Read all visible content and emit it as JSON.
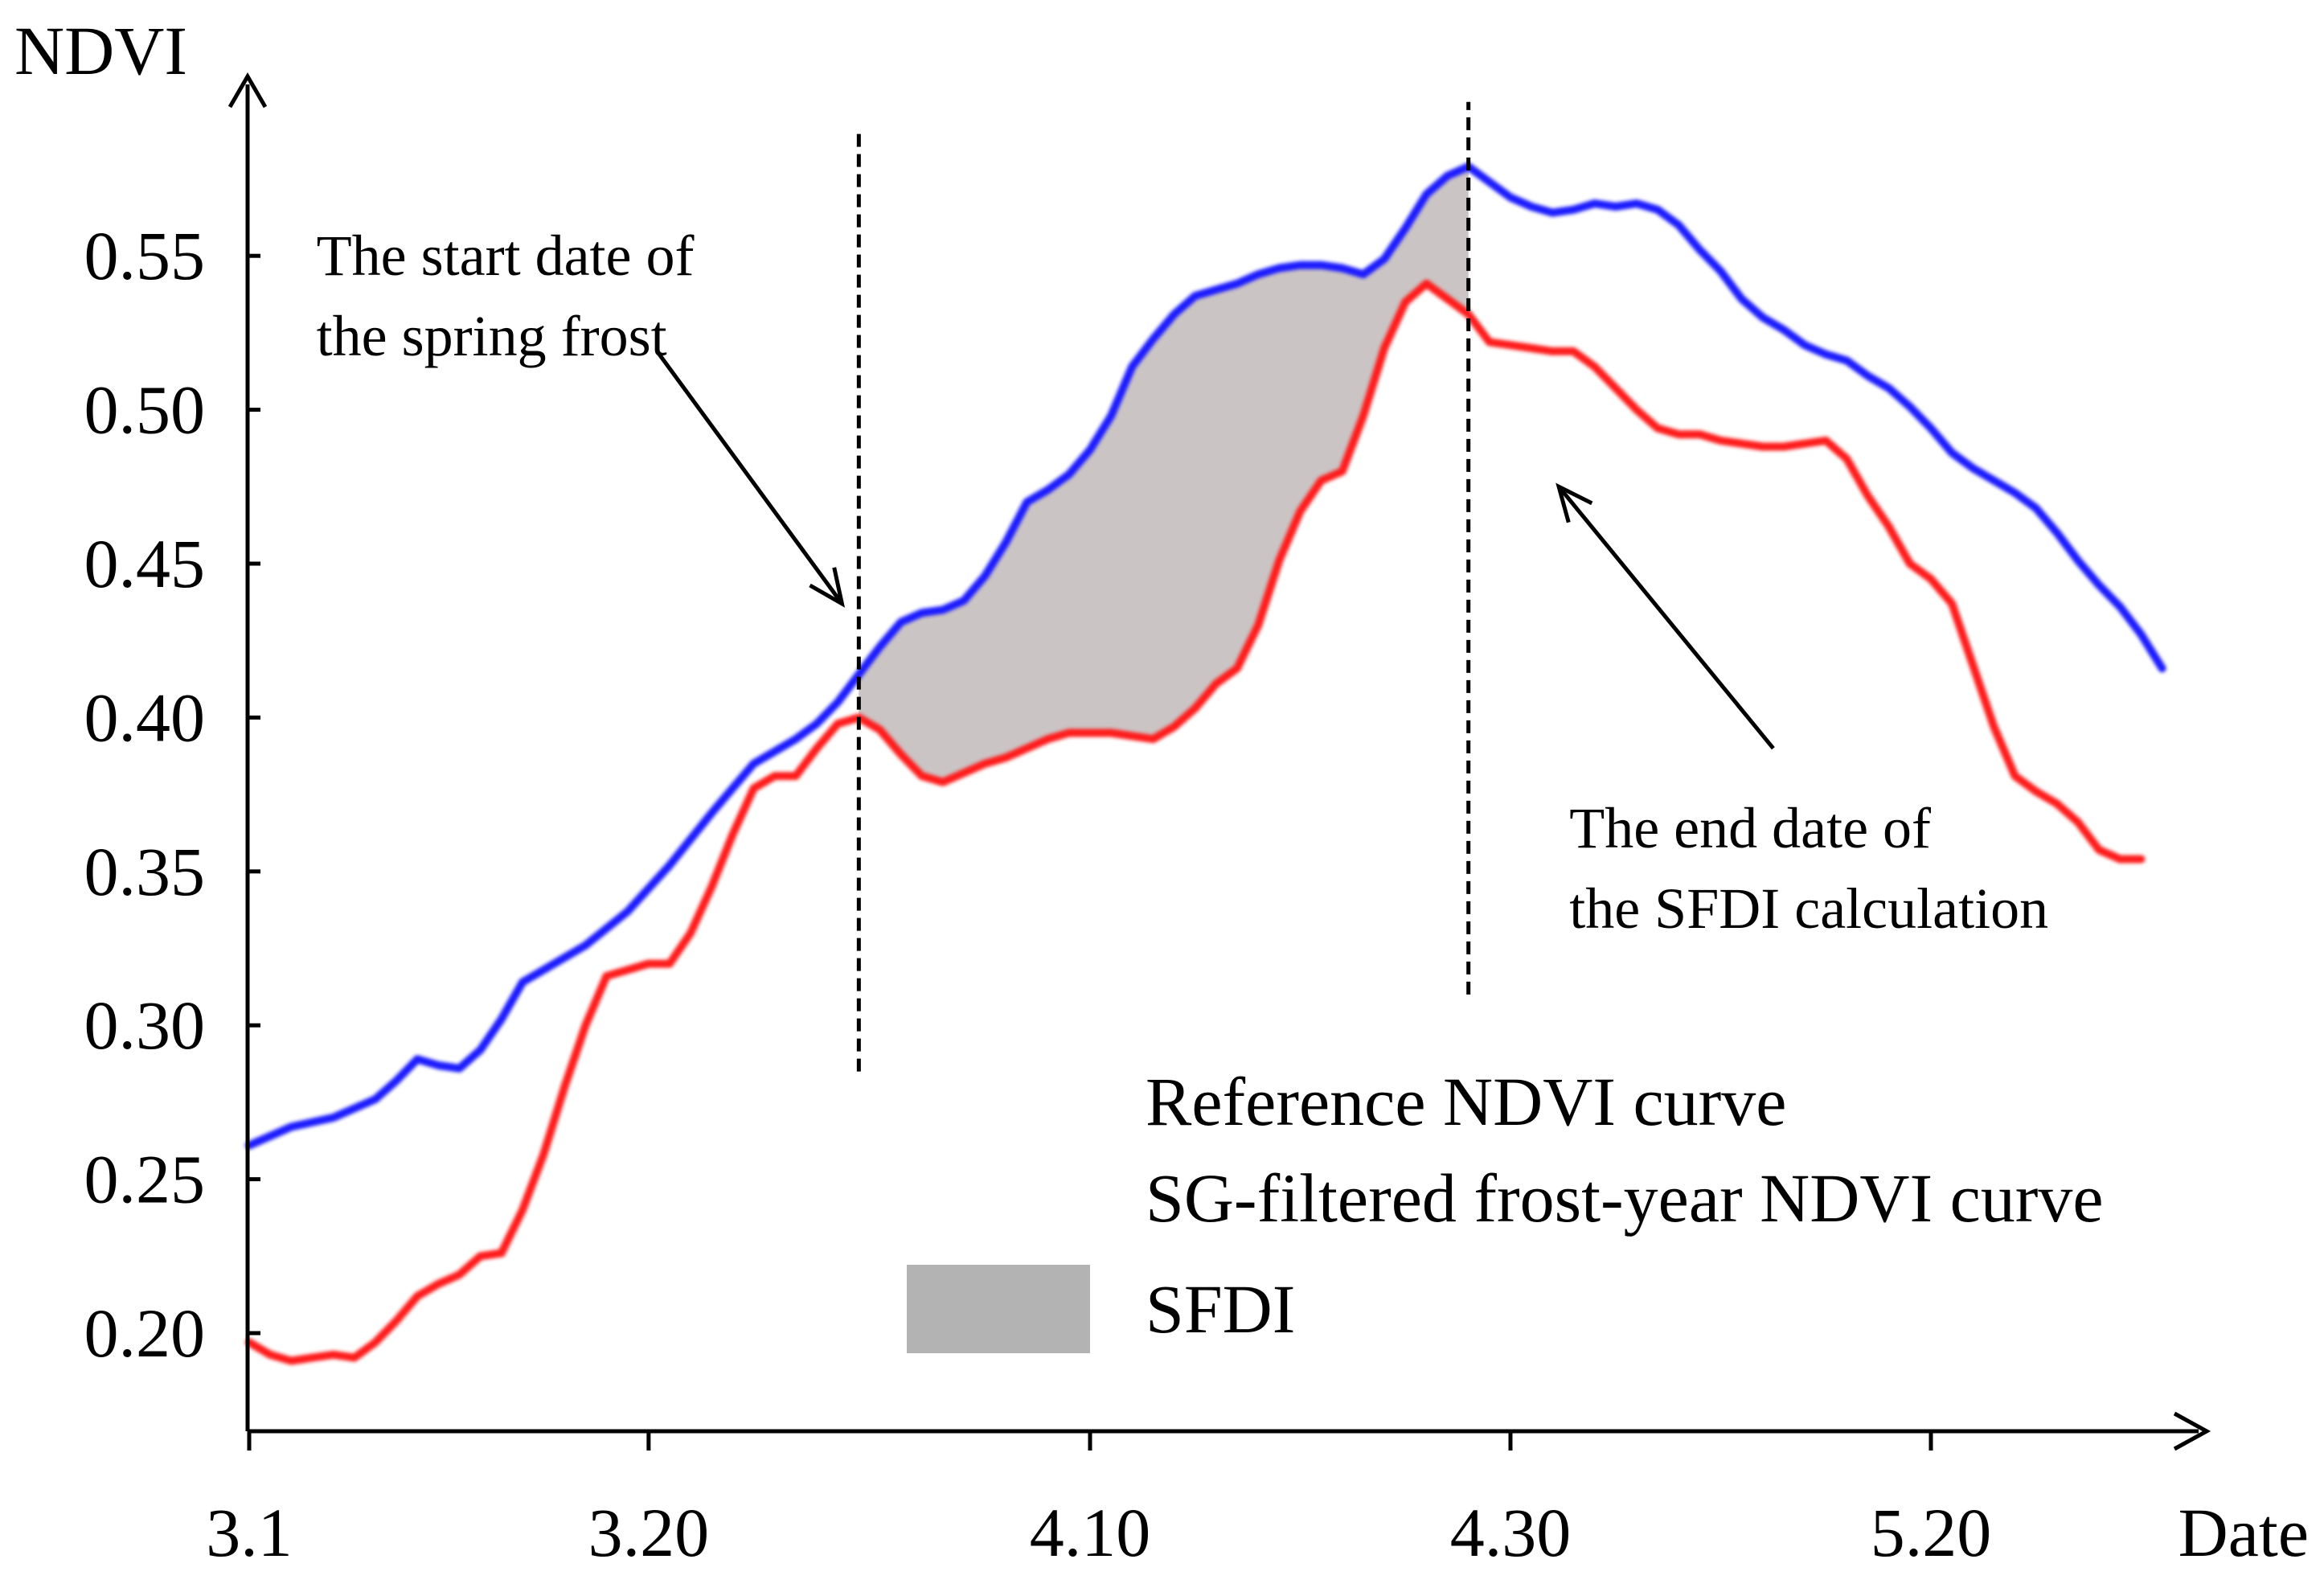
{
  "chart_data": {
    "type": "line",
    "title": "",
    "xlabel": "Date",
    "ylabel": "NDVI",
    "x_axis": {
      "domain_days": [
        0,
        92
      ],
      "ticks": [
        {
          "day": 0,
          "label": "3.1"
        },
        {
          "day": 19,
          "label": "3.20"
        },
        {
          "day": 40,
          "label": "4.10"
        },
        {
          "day": 60,
          "label": "4.30"
        },
        {
          "day": 80,
          "label": "5.20"
        }
      ]
    },
    "ylim": [
      0.17,
      0.59
    ],
    "yticks": [
      "0.20",
      "0.25",
      "0.30",
      "0.35",
      "0.40",
      "0.45",
      "0.50",
      "0.55"
    ],
    "grid": false,
    "series": [
      {
        "name": "Reference NDVI curve",
        "color": "#1a1aff",
        "points": [
          [
            0,
            0.261
          ],
          [
            2,
            0.267
          ],
          [
            4,
            0.27
          ],
          [
            6,
            0.276
          ],
          [
            7,
            0.282
          ],
          [
            8,
            0.289
          ],
          [
            9,
            0.287
          ],
          [
            10,
            0.286
          ],
          [
            11,
            0.292
          ],
          [
            12,
            0.302
          ],
          [
            13,
            0.314
          ],
          [
            14,
            0.318
          ],
          [
            16,
            0.326
          ],
          [
            18,
            0.337
          ],
          [
            20,
            0.352
          ],
          [
            22,
            0.369
          ],
          [
            23,
            0.377
          ],
          [
            24,
            0.385
          ],
          [
            25,
            0.389
          ],
          [
            26,
            0.393
          ],
          [
            27,
            0.398
          ],
          [
            28,
            0.405
          ],
          [
            29,
            0.414
          ],
          [
            30,
            0.423
          ],
          [
            31,
            0.431
          ],
          [
            32,
            0.434
          ],
          [
            33,
            0.435
          ],
          [
            34,
            0.438
          ],
          [
            35,
            0.446
          ],
          [
            36,
            0.457
          ],
          [
            37,
            0.47
          ],
          [
            38,
            0.474
          ],
          [
            39,
            0.479
          ],
          [
            40,
            0.487
          ],
          [
            41,
            0.498
          ],
          [
            42,
            0.514
          ],
          [
            43,
            0.523
          ],
          [
            44,
            0.531
          ],
          [
            45,
            0.537
          ],
          [
            46,
            0.539
          ],
          [
            47,
            0.541
          ],
          [
            48,
            0.544
          ],
          [
            49,
            0.546
          ],
          [
            50,
            0.547
          ],
          [
            51,
            0.547
          ],
          [
            52,
            0.546
          ],
          [
            53,
            0.544
          ],
          [
            54,
            0.549
          ],
          [
            55,
            0.559
          ],
          [
            56,
            0.57
          ],
          [
            57,
            0.576
          ],
          [
            58,
            0.579
          ],
          [
            59,
            0.574
          ],
          [
            60,
            0.569
          ],
          [
            61,
            0.566
          ],
          [
            62,
            0.564
          ],
          [
            63,
            0.565
          ],
          [
            64,
            0.567
          ],
          [
            65,
            0.566
          ],
          [
            66,
            0.567
          ],
          [
            67,
            0.565
          ],
          [
            68,
            0.56
          ],
          [
            69,
            0.552
          ],
          [
            70,
            0.545
          ],
          [
            71,
            0.536
          ],
          [
            72,
            0.53
          ],
          [
            73,
            0.526
          ],
          [
            74,
            0.521
          ],
          [
            75,
            0.518
          ],
          [
            76,
            0.516
          ],
          [
            77,
            0.511
          ],
          [
            78,
            0.507
          ],
          [
            79,
            0.501
          ],
          [
            80,
            0.494
          ],
          [
            81,
            0.486
          ],
          [
            82,
            0.481
          ],
          [
            83,
            0.477
          ],
          [
            84,
            0.473
          ],
          [
            85,
            0.468
          ],
          [
            86,
            0.46
          ],
          [
            87,
            0.451
          ],
          [
            88,
            0.443
          ],
          [
            89,
            0.436
          ],
          [
            90,
            0.427
          ],
          [
            91,
            0.416
          ]
        ]
      },
      {
        "name": "SG-filtered frost-year NDVI curve",
        "color": "#ff1a1a",
        "points": [
          [
            0,
            0.197
          ],
          [
            1,
            0.193
          ],
          [
            2,
            0.191
          ],
          [
            3,
            0.192
          ],
          [
            4,
            0.193
          ],
          [
            5,
            0.192
          ],
          [
            6,
            0.197
          ],
          [
            7,
            0.204
          ],
          [
            8,
            0.212
          ],
          [
            9,
            0.216
          ],
          [
            10,
            0.219
          ],
          [
            11,
            0.225
          ],
          [
            12,
            0.226
          ],
          [
            13,
            0.24
          ],
          [
            14,
            0.258
          ],
          [
            15,
            0.28
          ],
          [
            16,
            0.3
          ],
          [
            17,
            0.316
          ],
          [
            18,
            0.318
          ],
          [
            19,
            0.32
          ],
          [
            20,
            0.32
          ],
          [
            21,
            0.33
          ],
          [
            22,
            0.345
          ],
          [
            23,
            0.362
          ],
          [
            24,
            0.377
          ],
          [
            25,
            0.381
          ],
          [
            26,
            0.381
          ],
          [
            27,
            0.39
          ],
          [
            28,
            0.398
          ],
          [
            29,
            0.4
          ],
          [
            30,
            0.396
          ],
          [
            31,
            0.388
          ],
          [
            32,
            0.381
          ],
          [
            33,
            0.379
          ],
          [
            34,
            0.382
          ],
          [
            35,
            0.385
          ],
          [
            36,
            0.387
          ],
          [
            37,
            0.39
          ],
          [
            38,
            0.393
          ],
          [
            39,
            0.395
          ],
          [
            40,
            0.395
          ],
          [
            41,
            0.395
          ],
          [
            42,
            0.394
          ],
          [
            43,
            0.393
          ],
          [
            44,
            0.397
          ],
          [
            45,
            0.403
          ],
          [
            46,
            0.411
          ],
          [
            47,
            0.416
          ],
          [
            48,
            0.43
          ],
          [
            49,
            0.451
          ],
          [
            50,
            0.467
          ],
          [
            51,
            0.477
          ],
          [
            52,
            0.48
          ],
          [
            53,
            0.498
          ],
          [
            54,
            0.52
          ],
          [
            55,
            0.535
          ],
          [
            56,
            0.541
          ],
          [
            57,
            0.536
          ],
          [
            58,
            0.531
          ],
          [
            59,
            0.522
          ],
          [
            60,
            0.521
          ],
          [
            61,
            0.52
          ],
          [
            62,
            0.519
          ],
          [
            63,
            0.519
          ],
          [
            64,
            0.514
          ],
          [
            65,
            0.507
          ],
          [
            66,
            0.5
          ],
          [
            67,
            0.494
          ],
          [
            68,
            0.492
          ],
          [
            69,
            0.492
          ],
          [
            70,
            0.49
          ],
          [
            71,
            0.489
          ],
          [
            72,
            0.488
          ],
          [
            73,
            0.488
          ],
          [
            74,
            0.489
          ],
          [
            75,
            0.49
          ],
          [
            76,
            0.484
          ],
          [
            77,
            0.472
          ],
          [
            78,
            0.462
          ],
          [
            79,
            0.45
          ],
          [
            80,
            0.445
          ],
          [
            81,
            0.437
          ],
          [
            82,
            0.417
          ],
          [
            83,
            0.397
          ],
          [
            84,
            0.381
          ],
          [
            85,
            0.376
          ],
          [
            86,
            0.372
          ],
          [
            87,
            0.366
          ],
          [
            88,
            0.357
          ],
          [
            89,
            0.354
          ],
          [
            90,
            0.354
          ]
        ]
      }
    ],
    "shaded_region": {
      "name": "SFDI",
      "color": "#cbc4c4",
      "legend_color": "#b3b3b3",
      "from_day": 29,
      "to_day": 58
    },
    "vlines": [
      {
        "name": "spring-frost-start",
        "day": 29,
        "y_range": [
          0.285,
          0.59
        ],
        "style": "dashed"
      },
      {
        "name": "sfdi-end",
        "day": 58,
        "y_range": [
          0.31,
          0.6
        ],
        "style": "dashed"
      }
    ],
    "annotations": [
      {
        "name": "start-annotation",
        "lines": [
          "The start date of",
          "the spring frost"
        ],
        "text_at": [
          3.2,
          0.55
        ],
        "arrow_from": [
          19.4,
          0.519
        ],
        "arrow_to": [
          28.2,
          0.437
        ]
      },
      {
        "name": "end-annotation",
        "lines": [
          "The end date of",
          "the SFDI calculation"
        ],
        "text_at": [
          62.8,
          0.364
        ],
        "arrow_from": [
          72.5,
          0.39
        ],
        "arrow_to": [
          62.3,
          0.475
        ]
      }
    ],
    "legend": {
      "position": "bottom-right",
      "entries": [
        {
          "label": "Reference NDVI curve",
          "kind": "line",
          "color": "#1a1aff"
        },
        {
          "label": "SG-filtered frost-year NDVI curve",
          "kind": "line",
          "color": "#ff1a1a"
        },
        {
          "label": "SFDI",
          "kind": "patch",
          "color": "#b3b3b3"
        }
      ]
    }
  }
}
